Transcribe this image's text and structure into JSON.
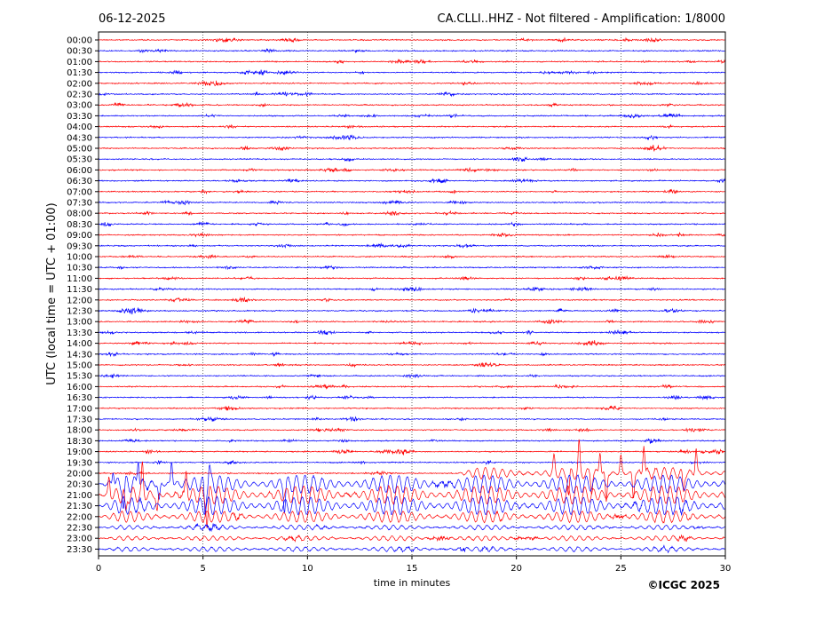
{
  "header": {
    "date": "06-12-2025",
    "station_info": "CA.CLLI..HHZ - Not filtered - Amplification: 1/8000"
  },
  "footer": {
    "copyright": "©ICGC 2025"
  },
  "colors": {
    "trace_a": "#ff0000",
    "trace_b": "#0000ff",
    "axis": "#000000",
    "grid": "#000000"
  },
  "chart_data": {
    "type": "line",
    "xlabel": "time in minutes",
    "ylabel": "UTC (local time = UTC + 01:00)",
    "xlim": [
      0,
      30
    ],
    "x_ticks": [
      0,
      5,
      10,
      15,
      20,
      25,
      30
    ],
    "grid": "vertical dotted at x ticks",
    "row_labels": [
      "00:00",
      "00:30",
      "01:00",
      "01:30",
      "02:00",
      "02:30",
      "03:00",
      "03:30",
      "04:00",
      "04:30",
      "05:00",
      "05:30",
      "06:00",
      "06:30",
      "07:00",
      "07:30",
      "08:00",
      "08:30",
      "09:00",
      "09:30",
      "10:00",
      "10:30",
      "11:00",
      "11:30",
      "12:00",
      "12:30",
      "13:00",
      "13:30",
      "14:00",
      "14:30",
      "15:00",
      "15:30",
      "16:00",
      "16:30",
      "17:00",
      "17:30",
      "18:00",
      "18:30",
      "19:00",
      "19:30",
      "20:00",
      "20:30",
      "21:00",
      "21:30",
      "22:00",
      "22:30",
      "23:00",
      "23:30"
    ],
    "row_colors": "alternating red / blue starting with red",
    "activity": [
      {
        "row": "20:00",
        "onset_min": 17,
        "level": "moderate"
      },
      {
        "row": "20:30",
        "onset_min": 0,
        "level": "strong"
      },
      {
        "row": "21:00",
        "onset_min": 0,
        "level": "strong"
      },
      {
        "row": "21:30",
        "onset_min": 0,
        "level": "strong"
      },
      {
        "row": "22:00",
        "onset_min": 0,
        "level": "moderate"
      },
      {
        "row": "22:30",
        "onset_min": 0,
        "level": "weak"
      },
      {
        "row": "23:00",
        "onset_min": 0,
        "level": "weak"
      },
      {
        "row": "23:30",
        "onset_min": 0,
        "level": "weak"
      }
    ],
    "spikes": [
      {
        "row": "20:00",
        "minutes": [
          21.8,
          22.5,
          23.0,
          23.6,
          24.0,
          24.3,
          25.0,
          25.6,
          26.1,
          28.0,
          28.6
        ]
      },
      {
        "row": "20:30",
        "minutes": [
          0.7,
          1.2,
          1.9,
          2.9,
          3.5,
          5.1,
          5.3,
          8.9
        ]
      },
      {
        "row": "21:00",
        "minutes": [
          0.5,
          1.3,
          2.1,
          2.8,
          4.2,
          5.2
        ]
      }
    ]
  }
}
